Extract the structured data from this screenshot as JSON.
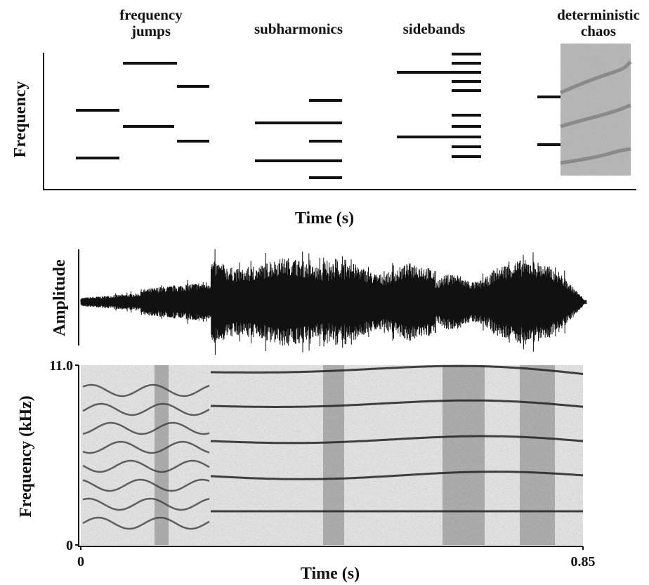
{
  "panels": {
    "schematic": {
      "labels": [
        "frequency jumps",
        "subharmonics",
        "sidebands",
        "deterministic chaos"
      ],
      "y_label": "Frequency",
      "x_label": "Time (s)"
    },
    "waveform": {
      "y_label": "Amplitude"
    },
    "spectrogram": {
      "y_label": "Frequency (kHz)",
      "x_label": "Time (s)",
      "ylim": [
        0,
        11
      ],
      "yticks": [
        0,
        {
          "value": 11,
          "label": "11.0"
        }
      ],
      "xlim": [
        0,
        0.85
      ],
      "xticks": [
        0,
        0.85
      ]
    }
  }
}
